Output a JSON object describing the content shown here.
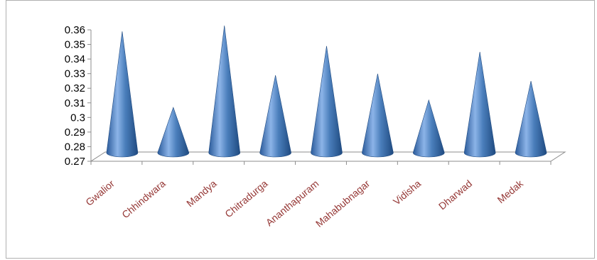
{
  "chart_data": {
    "type": "bar",
    "style": "3d-cone",
    "categories": [
      "Gwalior",
      "Chhindwara",
      "Mandya",
      "Chitradurga",
      "Ananthapuram",
      "Mahabubnagar",
      "Vidisha",
      "Dharwad",
      "Medak"
    ],
    "values": [
      0.356,
      0.304,
      0.36,
      0.326,
      0.346,
      0.327,
      0.309,
      0.342,
      0.322
    ],
    "ylim": [
      0.27,
      0.36
    ],
    "yticks": [
      "0.27",
      "0.28",
      "0.29",
      "0.3",
      "0.31",
      "0.32",
      "0.33",
      "0.34",
      "0.35",
      "0.36"
    ],
    "series_color": "#4a7ebb",
    "tick_label_color": "#953735",
    "grid": false,
    "legend": "none"
  }
}
